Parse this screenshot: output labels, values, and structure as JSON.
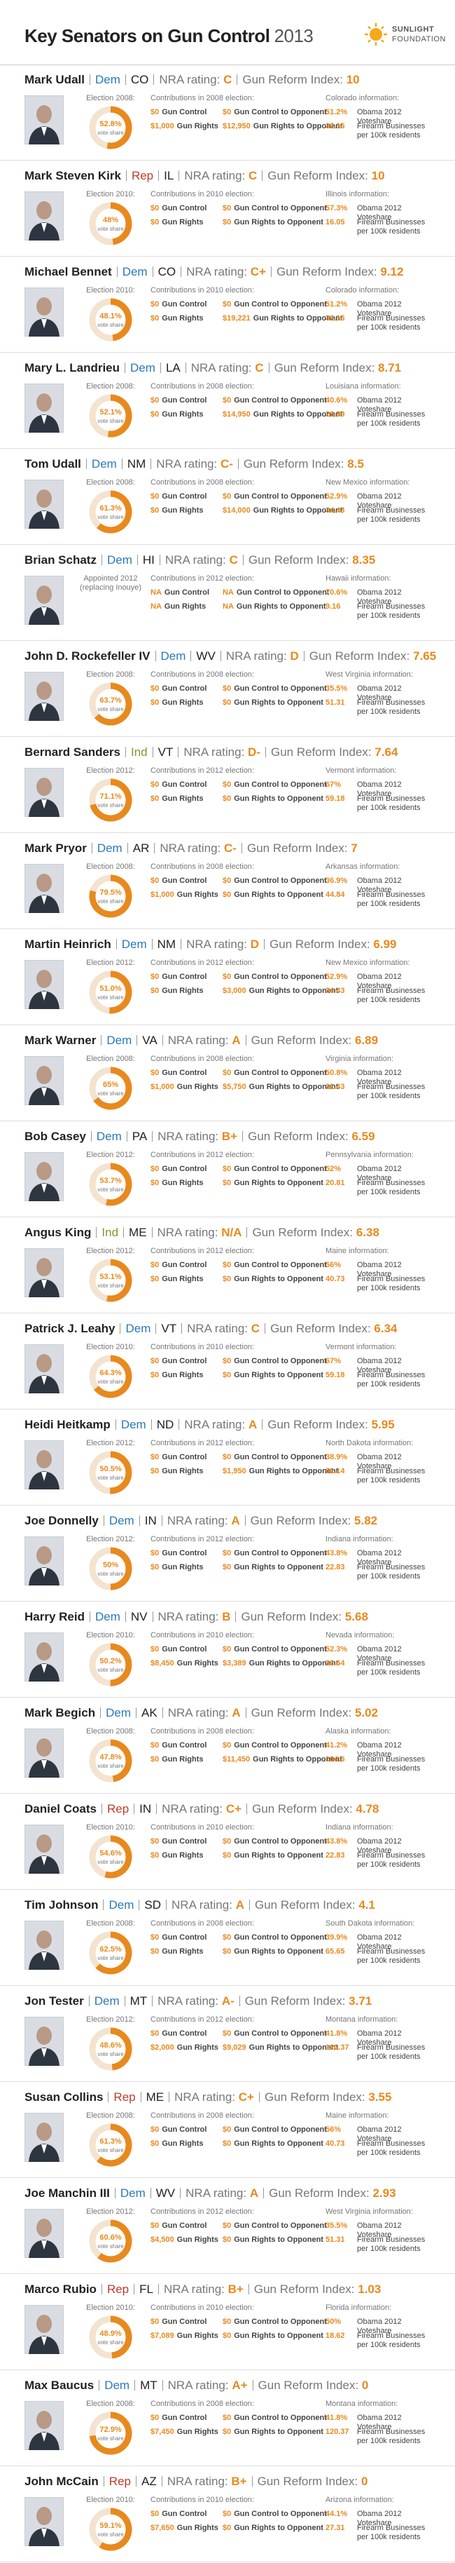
{
  "header": {
    "title": "Key Senators on Gun Control",
    "year": "2013",
    "logo": [
      "SUNLIGHT",
      "FOUNDATION"
    ]
  },
  "party_colors": {
    "Dem": "#2a78b8",
    "Rep": "#c0392b",
    "Ind": "#7a9a2a"
  },
  "accent_color": "#e8891d",
  "labels": {
    "nra": "NRA rating:",
    "index": "Gun Reform Index:",
    "vote_share": "vote share",
    "gun_control": "Gun Control",
    "gun_control_opponent": "Gun Control to Opponent",
    "gun_rights": "Gun Rights",
    "gun_rights_opponent": "Gun Rights to Opponent",
    "obama": "Obama 2012 Voteshare",
    "firearm": "Firearm Businesses per 100k residents"
  },
  "senators": [
    {
      "name": "Mark Udall",
      "party": "Dem",
      "state": "CO",
      "nra": "C",
      "index": "10",
      "election": "Election 2008:",
      "vote_share": 52.8,
      "vote_share_label": "52.8%",
      "contributions_title": "Contributions in 2008 election:",
      "contributions": [
        "$0",
        "$0",
        "$1,000",
        "$12,950"
      ],
      "state_info": "Colorado information:",
      "obama": "51.2%",
      "firearm": "32.15"
    },
    {
      "name": "Mark Steven Kirk",
      "party": "Rep",
      "state": "IL",
      "nra": "C",
      "index": "10",
      "election": "Election 2010:",
      "vote_share": 48,
      "vote_share_label": "48%",
      "contributions_title": "Contributions in 2010 election:",
      "contributions": [
        "$0",
        "$0",
        "$0",
        "$0"
      ],
      "state_info": "Illinois information:",
      "obama": "57.3%",
      "firearm": "16.05"
    },
    {
      "name": "Michael Bennet",
      "party": "Dem",
      "state": "CO",
      "nra": "C+",
      "index": "9.12",
      "election": "Election 2010:",
      "vote_share": 48.1,
      "vote_share_label": "48.1%",
      "contributions_title": "Contributions in 2010 election:",
      "contributions": [
        "$0",
        "$0",
        "$0",
        "$19,221"
      ],
      "state_info": "Colorado information:",
      "obama": "51.2%",
      "firearm": "32.15"
    },
    {
      "name": "Mary L. Landrieu",
      "party": "Dem",
      "state": "LA",
      "nra": "C",
      "index": "8.71",
      "election": "Election 2008:",
      "vote_share": 52.1,
      "vote_share_label": "52.1%",
      "contributions_title": "Contributions in 2008 election:",
      "contributions": [
        "$0",
        "$0",
        "$0",
        "$14,950"
      ],
      "state_info": "Louisiana information:",
      "obama": "40.6%",
      "firearm": "26.89"
    },
    {
      "name": "Tom Udall",
      "party": "Dem",
      "state": "NM",
      "nra": "C-",
      "index": "8.5",
      "election": "Election 2008:",
      "vote_share": 61.3,
      "vote_share_label": "61.3%",
      "contributions_title": "Contributions in 2008 election:",
      "contributions": [
        "$0",
        "$0",
        "$0",
        "$14,000"
      ],
      "state_info": "New Mexico information:",
      "obama": "52.9%",
      "firearm": "34.43"
    },
    {
      "name": "Brian Schatz",
      "party": "Dem",
      "state": "HI",
      "nra": "C",
      "index": "8.35",
      "election": "Appointed 2012 (replacing Inouye)",
      "vote_share": null,
      "vote_share_label": null,
      "contributions_title": "Contributions in 2012 election:",
      "contributions": [
        "NA",
        "NA",
        "NA",
        "NA"
      ],
      "state_info": "Hawaii information:",
      "obama": "70.6%",
      "firearm": "9.16"
    },
    {
      "name": "John D. Rockefeller IV",
      "party": "Dem",
      "state": "WV",
      "nra": "D",
      "index": "7.65",
      "election": "Election 2008:",
      "vote_share": 63.7,
      "vote_share_label": "63.7%",
      "contributions_title": "Contributions in 2008 election:",
      "contributions": [
        "$0",
        "$0",
        "$0",
        "$0"
      ],
      "state_info": "West Virginia information:",
      "obama": "35.5%",
      "firearm": "51.31"
    },
    {
      "name": "Bernard Sanders",
      "party": "Ind",
      "state": "VT",
      "nra": "D-",
      "index": "7.64",
      "election": "Election 2012:",
      "vote_share": 71.1,
      "vote_share_label": "71.1%",
      "contributions_title": "Contributions in 2012 election:",
      "contributions": [
        "$0",
        "$0",
        "$0",
        "$0"
      ],
      "state_info": "Vermont information:",
      "obama": "67%",
      "firearm": "59.18"
    },
    {
      "name": "Mark Pryor",
      "party": "Dem",
      "state": "AR",
      "nra": "C-",
      "index": "7",
      "election": "Election 2008:",
      "vote_share": 79.5,
      "vote_share_label": "79.5%",
      "contributions_title": "Contributions in 2008 election:",
      "contributions": [
        "$0",
        "$0",
        "$1,000",
        "$0"
      ],
      "state_info": "Arkansas information:",
      "obama": "36.9%",
      "firearm": "44.84"
    },
    {
      "name": "Martin Heinrich",
      "party": "Dem",
      "state": "NM",
      "nra": "D",
      "index": "6.99",
      "election": "Election 2012:",
      "vote_share": 51,
      "vote_share_label": "51.0%",
      "contributions_title": "Contributions in 2012 election:",
      "contributions": [
        "$0",
        "$0",
        "$0",
        "$3,000"
      ],
      "state_info": "New Mexico information:",
      "obama": "52.9%",
      "firearm": "34.43"
    },
    {
      "name": "Mark Warner",
      "party": "Dem",
      "state": "VA",
      "nra": "A",
      "index": "6.89",
      "election": "Election 2008:",
      "vote_share": 65,
      "vote_share_label": "65%",
      "contributions_title": "Contributions in 2008 election:",
      "contributions": [
        "$0",
        "$0",
        "$1,000",
        "$5,750"
      ],
      "state_info": "Virginia information:",
      "obama": "50.8%",
      "firearm": "22.43"
    },
    {
      "name": "Bob Casey",
      "party": "Dem",
      "state": "PA",
      "nra": "B+",
      "index": "6.59",
      "election": "Election 2012:",
      "vote_share": 53.7,
      "vote_share_label": "53.7%",
      "contributions_title": "Contributions in 2012 election:",
      "contributions": [
        "$0",
        "$0",
        "$0",
        "$0"
      ],
      "state_info": "Pennsylvania information:",
      "obama": "52%",
      "firearm": "20.81"
    },
    {
      "name": "Angus King",
      "party": "Ind",
      "state": "ME",
      "nra": "N/A",
      "index": "6.38",
      "election": "Election 2012:",
      "vote_share": 53.1,
      "vote_share_label": "53.1%",
      "contributions_title": "Contributions in 2012 election:",
      "contributions": [
        "$0",
        "$0",
        "$0",
        "$0"
      ],
      "state_info": "Maine information:",
      "obama": "56%",
      "firearm": "40.73"
    },
    {
      "name": "Patrick J. Leahy",
      "party": "Dem",
      "state": "VT",
      "nra": "C",
      "index": "6.34",
      "election": "Election 2010:",
      "vote_share": 64.3,
      "vote_share_label": "64.3%",
      "contributions_title": "Contributions in 2010 election:",
      "contributions": [
        "$0",
        "$0",
        "$0",
        "$0"
      ],
      "state_info": "Vermont information:",
      "obama": "67%",
      "firearm": "59.18"
    },
    {
      "name": "Heidi Heitkamp",
      "party": "Dem",
      "state": "ND",
      "nra": "A",
      "index": "5.95",
      "election": "Election 2012:",
      "vote_share": 50.5,
      "vote_share_label": "50.5%",
      "contributions_title": "Contributions in 2012 election:",
      "contributions": [
        "$0",
        "$0",
        "$0",
        "$1,950"
      ],
      "state_info": "North Dakota information:",
      "obama": "38.9%",
      "firearm": "62.14"
    },
    {
      "name": "Joe Donnelly",
      "party": "Dem",
      "state": "IN",
      "nra": "A",
      "index": "5.82",
      "election": "Election 2012:",
      "vote_share": 50,
      "vote_share_label": "50%",
      "contributions_title": "Contributions in 2012 election:",
      "contributions": [
        "$0",
        "$0",
        "$0",
        "$0"
      ],
      "state_info": "Indiana information:",
      "obama": "43.8%",
      "firearm": "22.83"
    },
    {
      "name": "Harry Reid",
      "party": "Dem",
      "state": "NV",
      "nra": "B",
      "index": "5.68",
      "election": "Election 2010:",
      "vote_share": 50.2,
      "vote_share_label": "50.2%",
      "contributions_title": "Contributions in 2010 election:",
      "contributions": [
        "$0",
        "$0",
        "$8,450",
        "$3,389"
      ],
      "state_info": "Nevada information:",
      "obama": "52.3%",
      "firearm": "23.54"
    },
    {
      "name": "Mark Begich",
      "party": "Dem",
      "state": "AK",
      "nra": "A",
      "index": "5.02",
      "election": "Election 2008:",
      "vote_share": 47.8,
      "vote_share_label": "47.8%",
      "contributions_title": "Contributions in 2008 election:",
      "contributions": [
        "$0",
        "$0",
        "$0",
        "$11,450"
      ],
      "state_info": "Alaska information:",
      "obama": "41.2%",
      "firearm": "104.5"
    },
    {
      "name": "Daniel Coats",
      "party": "Rep",
      "state": "IN",
      "nra": "C+",
      "index": "4.78",
      "election": "Election 2010:",
      "vote_share": 54.6,
      "vote_share_label": "54.6%",
      "contributions_title": "Contributions in 2010 election:",
      "contributions": [
        "$0",
        "$0",
        "$0",
        "$0"
      ],
      "state_info": "Indiana information:",
      "obama": "43.8%",
      "firearm": "22.83"
    },
    {
      "name": "Tim Johnson",
      "party": "Dem",
      "state": "SD",
      "nra": "A",
      "index": "4.1",
      "election": "Election 2008:",
      "vote_share": 62.5,
      "vote_share_label": "62.5%",
      "contributions_title": "Contributions in 2008 election:",
      "contributions": [
        "$0",
        "$0",
        "$0",
        "$0"
      ],
      "state_info": "South Dakota information:",
      "obama": "39.9%",
      "firearm": "65.65"
    },
    {
      "name": "Jon Tester",
      "party": "Dem",
      "state": "MT",
      "nra": "A-",
      "index": "3.71",
      "election": "Election 2012:",
      "vote_share": 48.6,
      "vote_share_label": "48.6%",
      "contributions_title": "Contributions in 2012 election:",
      "contributions": [
        "$0",
        "$0",
        "$2,000",
        "$9,029"
      ],
      "state_info": "Montana information:",
      "obama": "41.8%",
      "firearm": "120.37"
    },
    {
      "name": "Susan Collins",
      "party": "Rep",
      "state": "ME",
      "nra": "C+",
      "index": "3.55",
      "election": "Election 2008:",
      "vote_share": 61.3,
      "vote_share_label": "61.3%",
      "contributions_title": "Contributions in 2008 election:",
      "contributions": [
        "$0",
        "$0",
        "$0",
        "$0"
      ],
      "state_info": "Maine information:",
      "obama": "56%",
      "firearm": "40.73"
    },
    {
      "name": "Joe Manchin III",
      "party": "Dem",
      "state": "WV",
      "nra": "A",
      "index": "2.93",
      "election": "Election 2012:",
      "vote_share": 60.6,
      "vote_share_label": "60.6%",
      "contributions_title": "Contributions in 2012 election:",
      "contributions": [
        "$0",
        "$0",
        "$4,500",
        "$0"
      ],
      "state_info": "West Virginia information:",
      "obama": "35.5%",
      "firearm": "51.31"
    },
    {
      "name": "Marco Rubio",
      "party": "Rep",
      "state": "FL",
      "nra": "B+",
      "index": "1.03",
      "election": "Election 2010:",
      "vote_share": 48.9,
      "vote_share_label": "48.9%",
      "contributions_title": "Contributions in 2010 election:",
      "contributions": [
        "$0",
        "$0",
        "$7,089",
        "$0"
      ],
      "state_info": "Florida information:",
      "obama": "50%",
      "firearm": "18.62"
    },
    {
      "name": "Max Baucus",
      "party": "Dem",
      "state": "MT",
      "nra": "A+",
      "index": "0",
      "election": "Election 2008:",
      "vote_share": 72.9,
      "vote_share_label": "72.9%",
      "contributions_title": "Contributions in 2008 election:",
      "contributions": [
        "$0",
        "$0",
        "$7,450",
        "$0"
      ],
      "state_info": "Montana information:",
      "obama": "41.8%",
      "firearm": "120.37"
    },
    {
      "name": "John McCain",
      "party": "Rep",
      "state": "AZ",
      "nra": "B+",
      "index": "0",
      "election": "Election 2010:",
      "vote_share": 59.1,
      "vote_share_label": "59.1%",
      "contributions_title": "Contributions in 2010 election:",
      "contributions": [
        "$0",
        "$0",
        "$7,650",
        "$0"
      ],
      "state_info": "Arizona information:",
      "obama": "44.1%",
      "firearm": "27.31"
    }
  ]
}
